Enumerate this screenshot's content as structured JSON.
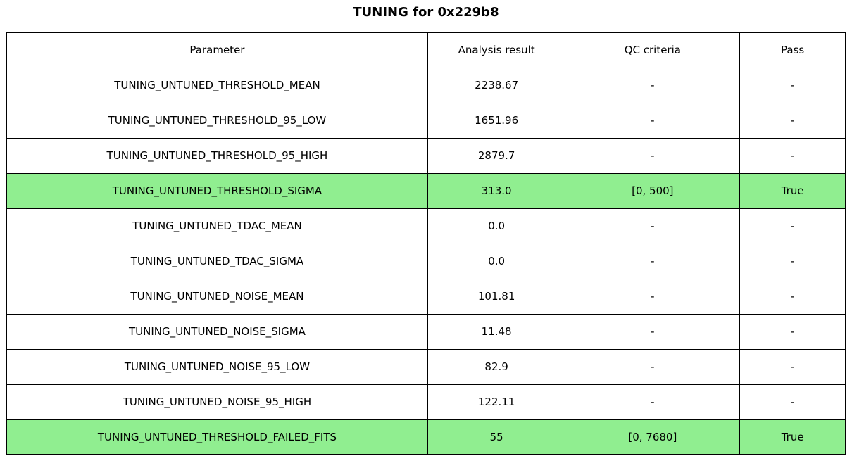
{
  "chart_data": {
    "type": "table",
    "title": "TUNING for 0x229b8",
    "columns": [
      "Parameter",
      "Analysis result",
      "QC criteria",
      "Pass"
    ],
    "rows": [
      {
        "parameter": "TUNING_UNTUNED_THRESHOLD_MEAN",
        "result": "2238.67",
        "qc": "-",
        "pass": "-",
        "highlight": false
      },
      {
        "parameter": "TUNING_UNTUNED_THRESHOLD_95_LOW",
        "result": "1651.96",
        "qc": "-",
        "pass": "-",
        "highlight": false
      },
      {
        "parameter": "TUNING_UNTUNED_THRESHOLD_95_HIGH",
        "result": "2879.7",
        "qc": "-",
        "pass": "-",
        "highlight": false
      },
      {
        "parameter": "TUNING_UNTUNED_THRESHOLD_SIGMA",
        "result": "313.0",
        "qc": "[0, 500]",
        "pass": "True",
        "highlight": true
      },
      {
        "parameter": "TUNING_UNTUNED_TDAC_MEAN",
        "result": "0.0",
        "qc": "-",
        "pass": "-",
        "highlight": false
      },
      {
        "parameter": "TUNING_UNTUNED_TDAC_SIGMA",
        "result": "0.0",
        "qc": "-",
        "pass": "-",
        "highlight": false
      },
      {
        "parameter": "TUNING_UNTUNED_NOISE_MEAN",
        "result": "101.81",
        "qc": "-",
        "pass": "-",
        "highlight": false
      },
      {
        "parameter": "TUNING_UNTUNED_NOISE_SIGMA",
        "result": "11.48",
        "qc": "-",
        "pass": "-",
        "highlight": false
      },
      {
        "parameter": "TUNING_UNTUNED_NOISE_95_LOW",
        "result": "82.9",
        "qc": "-",
        "pass": "-",
        "highlight": false
      },
      {
        "parameter": "TUNING_UNTUNED_NOISE_95_HIGH",
        "result": "122.11",
        "qc": "-",
        "pass": "-",
        "highlight": false
      },
      {
        "parameter": "TUNING_UNTUNED_THRESHOLD_FAILED_FITS",
        "result": "55",
        "qc": "[0, 7680]",
        "pass": "True",
        "highlight": true
      }
    ],
    "layout": {
      "grid": "on",
      "highlight_means": "QC criteria applied and passed"
    }
  },
  "colors": {
    "highlight": "#90EE90",
    "border": "#000000",
    "text": "#000000",
    "background": "#FFFFFF"
  }
}
